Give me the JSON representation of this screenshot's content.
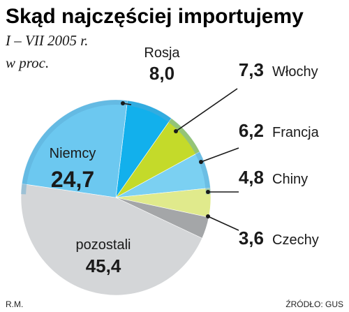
{
  "chart_data": {
    "type": "pie",
    "title": "Skąd najczęściej importujemy",
    "subtitle_line1": "I – VII 2005 r.",
    "subtitle_line2": "w proc.",
    "slices": [
      {
        "label": "Rosja",
        "value": 8.0,
        "display": "8,0",
        "color": "#12b0ec"
      },
      {
        "label": "Włochy",
        "value": 7.3,
        "display": "7,3",
        "color": "#c4da2a"
      },
      {
        "label": "Francja",
        "value": 6.2,
        "display": "6,2",
        "color": "#7bd0f2"
      },
      {
        "label": "Chiny",
        "value": 4.8,
        "display": "4,8",
        "color": "#e0ea8c"
      },
      {
        "label": "Czechy",
        "value": 3.6,
        "display": "3,6",
        "color": "#a4a6a8"
      },
      {
        "label": "pozostali",
        "value": 45.4,
        "display": "45,4",
        "color": "#d4d6d8"
      },
      {
        "label": "Niemcy",
        "value": 24.7,
        "display": "24,7",
        "color": "#6cc8f0"
      }
    ]
  },
  "footer": {
    "author": "R.M.",
    "source": "ŹRÓDŁO: GUS"
  },
  "colors": {
    "rim": "#5aa9d2",
    "text": "#1a1a1a"
  }
}
